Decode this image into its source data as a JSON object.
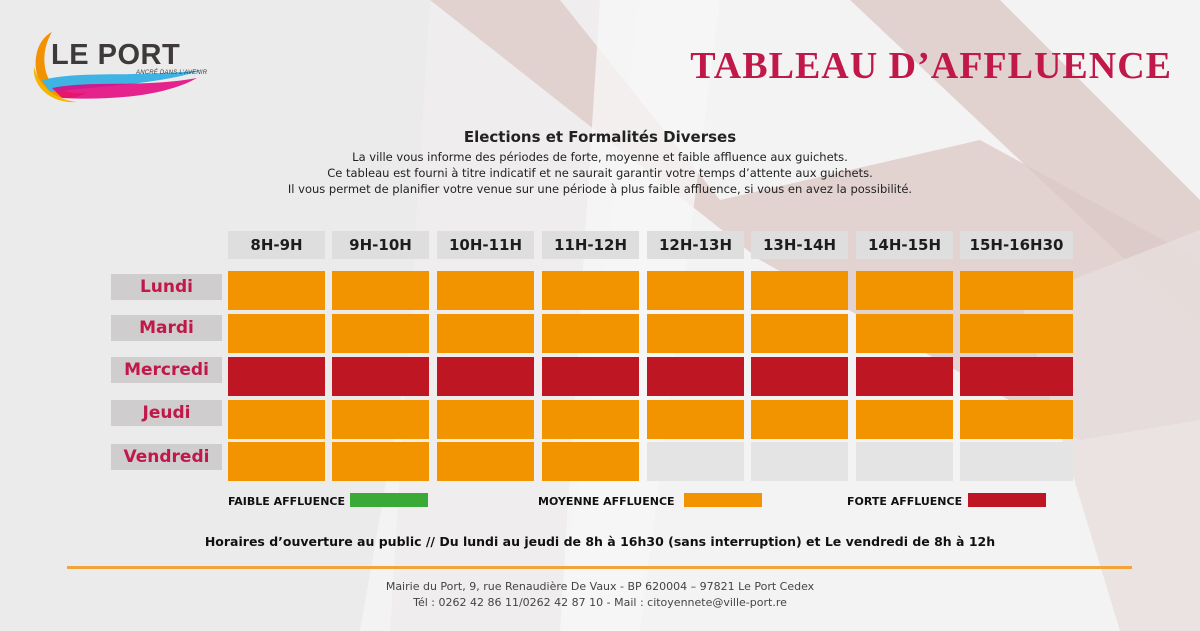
{
  "logo": {
    "name": "LE PORT",
    "tagline": "ANCRÉ DANS L'AVENIR"
  },
  "header": {
    "title": "TABLEAU D’AFFLUENCE"
  },
  "intro": {
    "subtitle": "Elections et Formalités Diverses",
    "lines": [
      "La ville vous informe des périodes de forte, moyenne et faible affluence aux guichets.",
      "Ce tableau est fourni à titre indicatif et ne saurait garantir votre temps d’attente aux guichets.",
      "Il vous permet de planifier votre venue sur une période à plus faible affluence, si vous en avez la possibilité."
    ]
  },
  "table": {
    "hours": [
      "8H-9H",
      "9H-10H",
      "10H-11H",
      "11H-12H",
      "12H-13H",
      "13H-14H",
      "14H-15H",
      "15H-16H30"
    ],
    "days": [
      {
        "name": "Lundi",
        "levels": [
          "moyenne",
          "moyenne",
          "moyenne",
          "moyenne",
          "moyenne",
          "moyenne",
          "moyenne",
          "moyenne"
        ]
      },
      {
        "name": "Mardi",
        "levels": [
          "moyenne",
          "moyenne",
          "moyenne",
          "moyenne",
          "moyenne",
          "moyenne",
          "moyenne",
          "moyenne"
        ]
      },
      {
        "name": "Mercredi",
        "levels": [
          "forte",
          "forte",
          "forte",
          "forte",
          "forte",
          "forte",
          "forte",
          "forte"
        ]
      },
      {
        "name": "Jeudi",
        "levels": [
          "moyenne",
          "moyenne",
          "moyenne",
          "moyenne",
          "moyenne",
          "moyenne",
          "moyenne",
          "moyenne"
        ]
      },
      {
        "name": "Vendredi",
        "levels": [
          "moyenne",
          "moyenne",
          "moyenne",
          "moyenne",
          "ferme",
          "ferme",
          "ferme",
          "ferme"
        ]
      }
    ]
  },
  "legend": {
    "faible": {
      "label": "FAIBLE AFFLUENCE",
      "color": "#3aa935"
    },
    "moyenne": {
      "label": "MOYENNE AFFLUENCE",
      "color": "#f29400"
    },
    "forte": {
      "label": "FORTE AFFLUENCE",
      "color": "#be1622"
    }
  },
  "colors": {
    "ferme": "#e4e4e4",
    "accent": "#c1184a"
  },
  "hours_note": "Horaires d’ouverture au public // Du lundi au jeudi  de 8h à 16h30 (sans interruption) et Le vendredi  de 8h à 12h",
  "footer": {
    "address": "Mairie du Port, 9, rue Renaudière De Vaux - BP 620004 – 97821 Le Port Cedex",
    "contact": "Tél : 0262 42 86 11/0262 42 87 10 - Mail : citoyennete@ville-port.re"
  }
}
